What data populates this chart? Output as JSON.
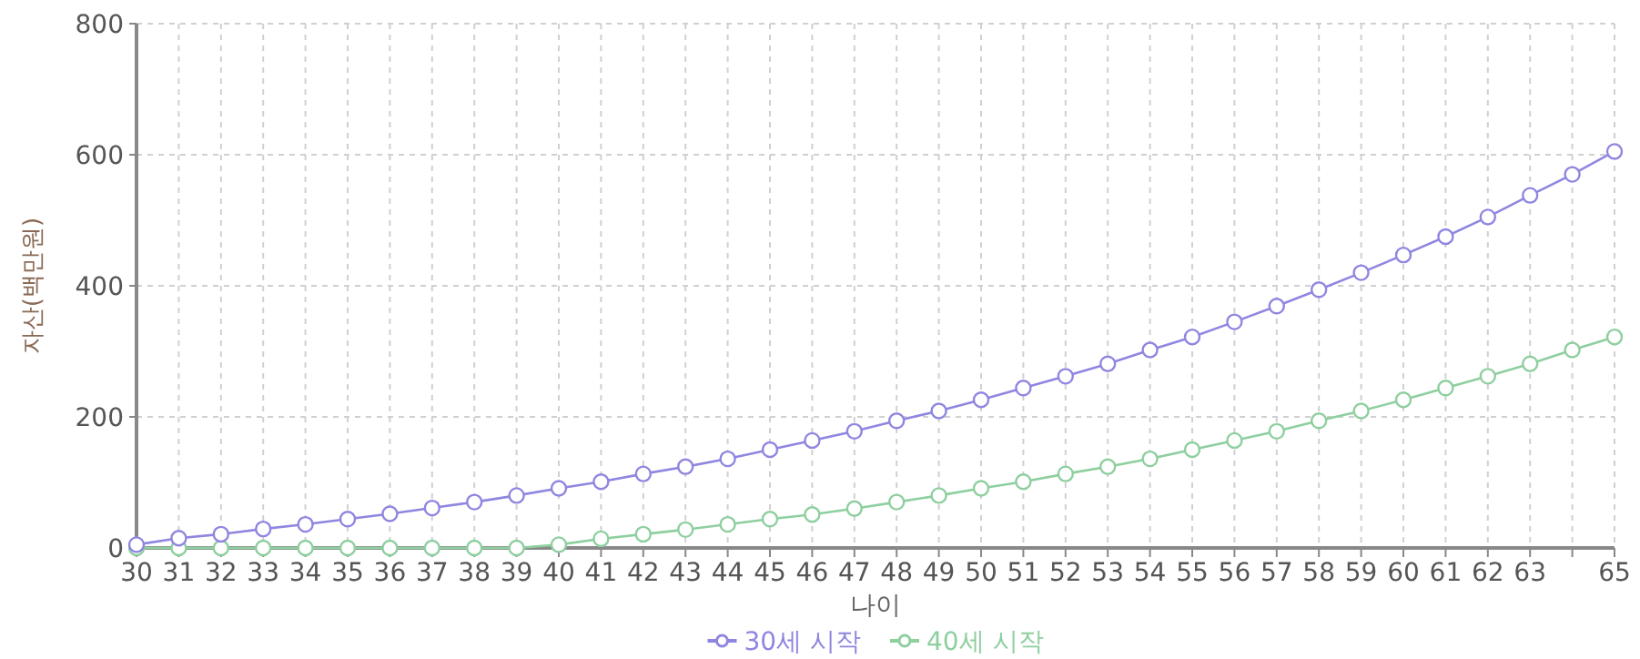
{
  "chart_data": {
    "type": "line",
    "xlabel": "나이",
    "ylabel": "자산(백만원)",
    "x": [
      30,
      31,
      32,
      33,
      34,
      35,
      36,
      37,
      38,
      39,
      40,
      41,
      42,
      43,
      44,
      45,
      46,
      47,
      48,
      49,
      50,
      51,
      52,
      53,
      54,
      55,
      56,
      57,
      58,
      59,
      60,
      61,
      62,
      63,
      64,
      65
    ],
    "series": [
      {
        "name": "30세 시작",
        "color": "#8f86e0",
        "values": [
          5,
          15,
          21,
          29,
          36,
          44,
          52,
          61,
          70,
          80,
          91,
          101,
          113,
          124,
          136,
          150,
          164,
          178,
          194,
          209,
          226,
          244,
          262,
          281,
          302,
          322,
          345,
          369,
          394,
          420,
          447,
          475,
          505,
          538,
          570,
          605
        ]
      },
      {
        "name": "40세 시작",
        "color": "#8ecf9f",
        "values": [
          0,
          0,
          0,
          0,
          0,
          0,
          0,
          0,
          0,
          0,
          5,
          14,
          21,
          28,
          36,
          44,
          51,
          60,
          70,
          80,
          91,
          101,
          113,
          124,
          136,
          150,
          164,
          178,
          194,
          209,
          226,
          244,
          262,
          281,
          302,
          322
        ]
      }
    ],
    "xlim": [
      30,
      65
    ],
    "xticks": [
      30,
      31,
      32,
      33,
      34,
      35,
      36,
      37,
      38,
      39,
      40,
      41,
      42,
      43,
      44,
      45,
      46,
      47,
      48,
      49,
      50,
      51,
      52,
      53,
      54,
      55,
      56,
      57,
      58,
      59,
      60,
      61,
      62,
      63,
      {
        "value": 64,
        "label": null
      },
      65
    ],
    "ylim": [
      0,
      800
    ],
    "yticks": [
      0,
      200,
      400,
      600,
      800
    ],
    "grid": true,
    "legend": "bottom",
    "marker": "circle",
    "line_style": "solid"
  }
}
